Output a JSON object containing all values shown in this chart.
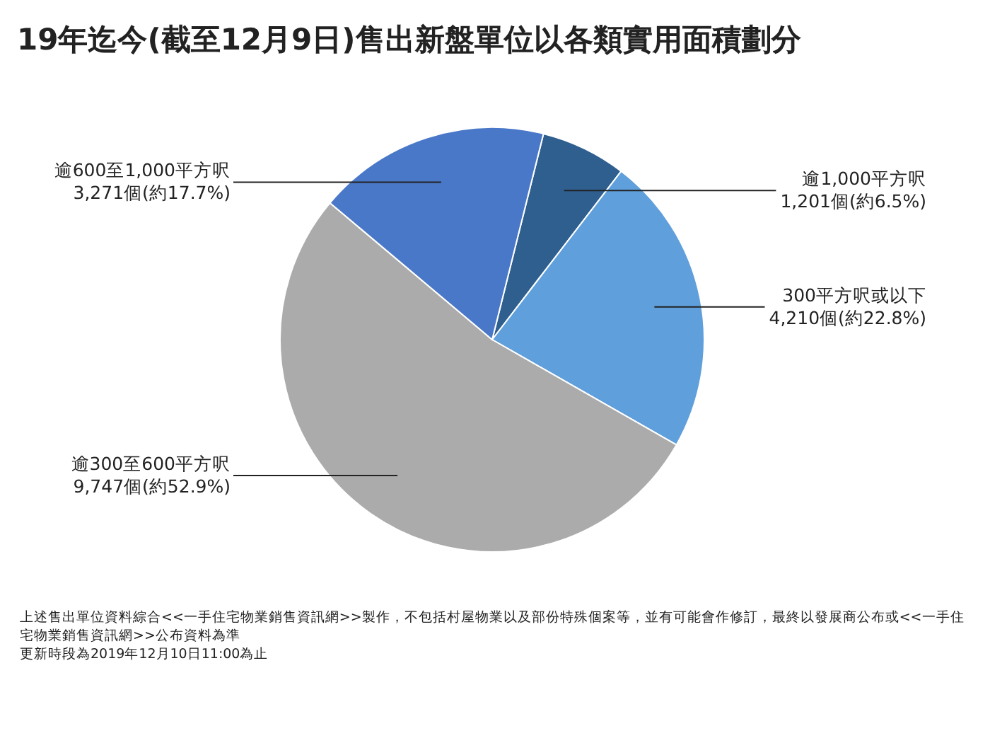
{
  "chart_data": {
    "type": "pie",
    "title": "19年迄今(截至12月9日)售出新盤單位以各類實用面積劃分",
    "categories": [
      "逾1,000平方呎",
      "300平方呎或以下",
      "逾300至600平方呎",
      "逾600至1,000平方呎"
    ],
    "values": [
      1201,
      4210,
      9747,
      3271
    ],
    "value_labels": [
      "1,201個(約6.5%)",
      "4,210個(約22.8%)",
      "9,747個(約52.9%)",
      "3,271個(約17.7%)"
    ],
    "colors": [
      "#2e5f8f",
      "#5f9fdc",
      "#ababab",
      "#4a78c8"
    ],
    "annotations": [
      "上述售出單位資料綜合<<一手住宅物業銷售資訊網>>製作，不包括村屋物業以及部份特殊個案等，並有可能會作修訂，最終以發展商公布或<<一手住宅物業銷售資訊網>>公布資料為準",
      "更新時段為2019年12月10日11:00為止"
    ]
  }
}
